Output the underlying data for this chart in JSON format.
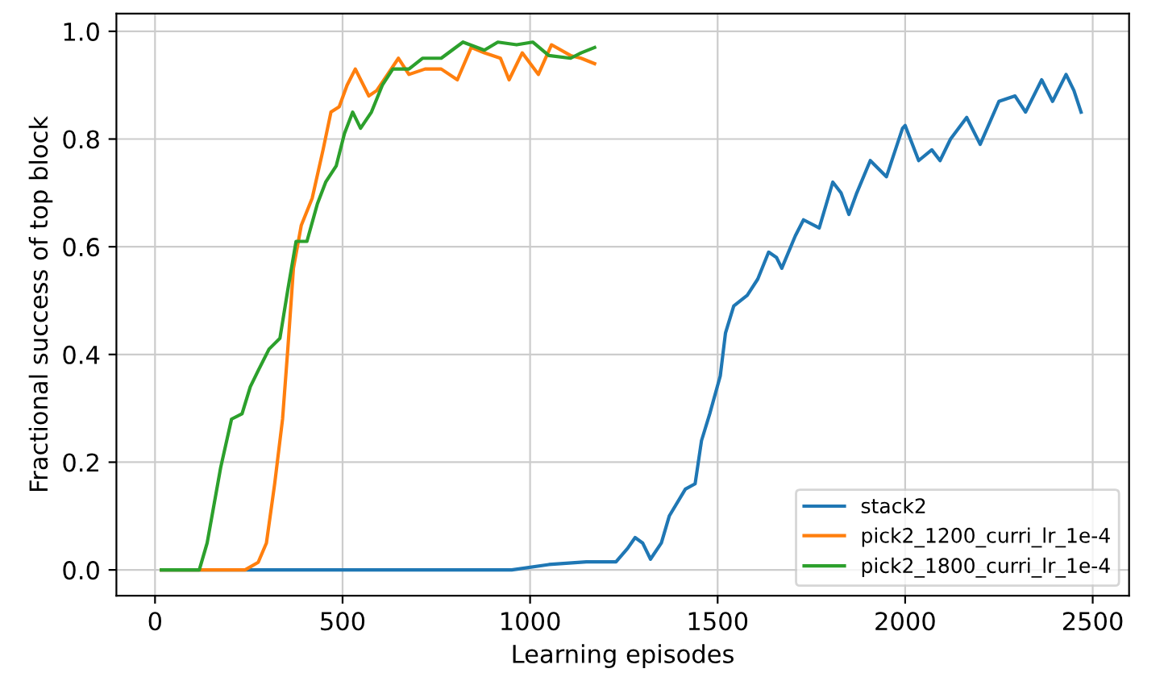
{
  "chart_data": {
    "type": "line",
    "xlabel": "Learning episodes",
    "ylabel": "Fractional success of top block",
    "xlim": [
      -103,
      2597
    ],
    "ylim": [
      -0.048,
      1.033
    ],
    "xticks": [
      0,
      500,
      1000,
      1500,
      2000,
      2500
    ],
    "yticks": [
      {
        "value": 0,
        "label": "0.0"
      },
      {
        "value": 0.2,
        "label": "0.2"
      },
      {
        "value": 0.4,
        "label": "0.4"
      },
      {
        "value": 0.6,
        "label": "0.6"
      },
      {
        "value": 0.8,
        "label": "0.8"
      },
      {
        "value": 1,
        "label": "1.0"
      }
    ],
    "grid": true,
    "legend": "bottom right",
    "marker": "none",
    "line_style": "solid",
    "series": [
      {
        "name": "stack2",
        "color": "#1f77b4",
        "x": [
          17,
          500,
          951,
          1050,
          1150,
          1229,
          1260,
          1280,
          1300,
          1321,
          1350,
          1371,
          1414,
          1440,
          1457,
          1479,
          1507,
          1521,
          1543,
          1579,
          1607,
          1636,
          1657,
          1671,
          1707,
          1729,
          1771,
          1807,
          1829,
          1850,
          1871,
          1907,
          1950,
          1993,
          2000,
          2036,
          2071,
          2093,
          2121,
          2164,
          2200,
          2250,
          2293,
          2321,
          2364,
          2393,
          2429,
          2450,
          2469
        ],
        "values": [
          0,
          0,
          0,
          0.01,
          0.015,
          0.015,
          0.04,
          0.06,
          0.05,
          0.02,
          0.05,
          0.1,
          0.15,
          0.16,
          0.24,
          0.29,
          0.36,
          0.44,
          0.49,
          0.51,
          0.54,
          0.59,
          0.58,
          0.56,
          0.62,
          0.65,
          0.635,
          0.72,
          0.7,
          0.66,
          0.7,
          0.76,
          0.73,
          0.82,
          0.825,
          0.76,
          0.78,
          0.76,
          0.8,
          0.84,
          0.79,
          0.87,
          0.88,
          0.85,
          0.91,
          0.87,
          0.92,
          0.89,
          0.85
        ]
      },
      {
        "name": "pick2_1200_curri_lr_1e-4",
        "color": "#ff7f0e",
        "x": [
          17,
          240,
          275,
          297,
          319,
          340,
          354,
          369,
          390,
          419,
          448,
          469,
          491,
          512,
          534,
          570,
          591,
          620,
          649,
          677,
          720,
          763,
          806,
          843,
          878,
          921,
          944,
          979,
          1022,
          1057,
          1108,
          1136,
          1172
        ],
        "values": [
          0,
          0,
          0.014,
          0.05,
          0.16,
          0.28,
          0.41,
          0.56,
          0.64,
          0.69,
          0.78,
          0.85,
          0.86,
          0.9,
          0.93,
          0.88,
          0.89,
          0.92,
          0.95,
          0.92,
          0.93,
          0.93,
          0.91,
          0.97,
          0.96,
          0.95,
          0.91,
          0.96,
          0.92,
          0.975,
          0.955,
          0.95,
          0.94
        ]
      },
      {
        "name": "pick2_1800_curri_lr_1e-4",
        "color": "#2ca02c",
        "x": [
          17,
          118,
          139,
          175,
          204,
          232,
          254,
          275,
          304,
          333,
          354,
          376,
          405,
          433,
          455,
          483,
          505,
          527,
          548,
          577,
          606,
          634,
          677,
          713,
          763,
          821,
          878,
          914,
          964,
          1007,
          1050,
          1108,
          1136,
          1172
        ],
        "values": [
          0,
          0,
          0.05,
          0.19,
          0.28,
          0.29,
          0.34,
          0.37,
          0.41,
          0.43,
          0.52,
          0.61,
          0.61,
          0.68,
          0.72,
          0.75,
          0.81,
          0.85,
          0.82,
          0.85,
          0.9,
          0.93,
          0.93,
          0.95,
          0.95,
          0.98,
          0.965,
          0.98,
          0.975,
          0.98,
          0.955,
          0.95,
          0.96,
          0.97
        ]
      }
    ]
  }
}
